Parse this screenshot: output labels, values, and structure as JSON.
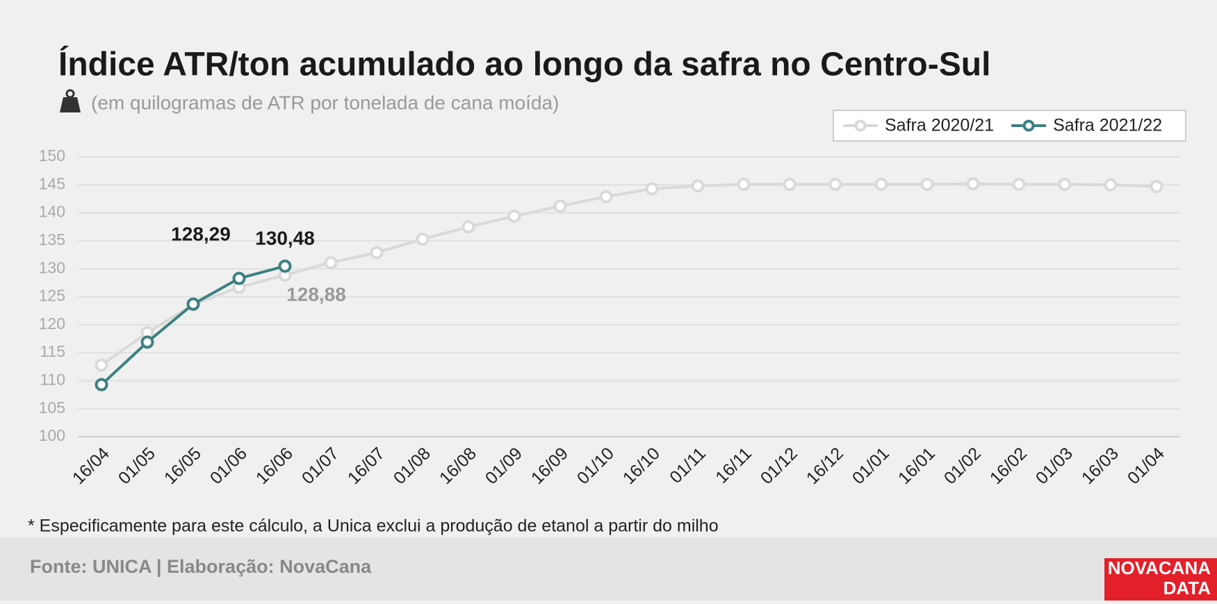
{
  "chart_data": {
    "type": "line",
    "title": "Índice ATR/ton acumulado ao longo da safra no Centro-Sul",
    "subtitle": "(em quilogramas de ATR por tonelada de cana moída)",
    "categories": [
      "16/04",
      "01/05",
      "16/05",
      "01/06",
      "16/06",
      "01/07",
      "16/07",
      "01/08",
      "16/08",
      "01/09",
      "16/09",
      "01/10",
      "16/10",
      "01/11",
      "16/11",
      "01/12",
      "16/12",
      "01/01",
      "16/01",
      "01/02",
      "16/02",
      "01/03",
      "16/03",
      "01/04"
    ],
    "series": [
      {
        "name": "Safra 2020/21",
        "color": "#d9d9d9",
        "values": [
          112.8,
          118.6,
          123.6,
          126.7,
          128.88,
          131.1,
          132.9,
          135.3,
          137.5,
          139.4,
          141.2,
          142.9,
          144.3,
          144.8,
          145.1,
          145.1,
          145.1,
          145.1,
          145.1,
          145.2,
          145.1,
          145.1,
          145.0,
          144.7
        ],
        "value_labels": [
          null,
          null,
          null,
          null,
          "128,88",
          null,
          null,
          null,
          null,
          null,
          null,
          null,
          null,
          null,
          null,
          null,
          null,
          null,
          null,
          null,
          null,
          null,
          null,
          null
        ]
      },
      {
        "name": "Safra 2021/22",
        "color": "#3d8080",
        "values": [
          109.3,
          116.9,
          123.7,
          128.29,
          130.48,
          null,
          null,
          null,
          null,
          null,
          null,
          null,
          null,
          null,
          null,
          null,
          null,
          null,
          null,
          null,
          null,
          null,
          null,
          null
        ],
        "value_labels": [
          null,
          null,
          null,
          "128,29",
          "130,48",
          null,
          null,
          null,
          null,
          null,
          null,
          null,
          null,
          null,
          null,
          null,
          null,
          null,
          null,
          null,
          null,
          null,
          null,
          null
        ]
      }
    ],
    "ylim": [
      100,
      150
    ],
    "yticks": [
      100,
      105,
      110,
      115,
      120,
      125,
      130,
      135,
      140,
      145,
      150
    ],
    "grid": true,
    "legend": "top-right",
    "footnote": "* Especificamente para este cálculo, a Unica exclui a produção de etanol a partir do milho",
    "source": "Fonte: UNICA | Elaboração: NovaCana",
    "logo": [
      "NOVACANA",
      "DATA"
    ]
  }
}
